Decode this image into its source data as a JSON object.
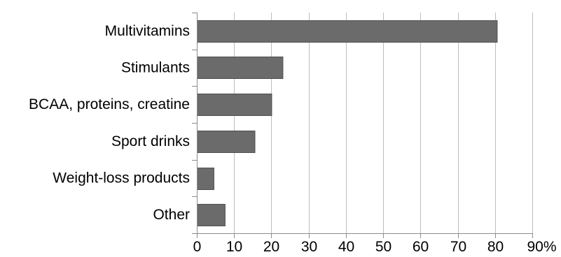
{
  "chart_data": {
    "type": "bar",
    "orientation": "horizontal",
    "categories": [
      "Multivitamins",
      "Stimulants",
      "BCAA, proteins, creatine",
      "Sport drinks",
      "Weight-loss products",
      "Other"
    ],
    "values": [
      80.5,
      23,
      20,
      15.5,
      4.5,
      7.5
    ],
    "xlim": [
      0,
      90
    ],
    "x_ticks": [
      0,
      10,
      20,
      30,
      40,
      50,
      60,
      70,
      80,
      90
    ],
    "x_tick_labels": [
      "0",
      "10",
      "20",
      "30",
      "40",
      "50",
      "60",
      "70",
      "80",
      "90%"
    ],
    "title": "",
    "xlabel": "",
    "ylabel": "",
    "grid": "vertical",
    "legend": "none",
    "bar_color": "#6b6b6b",
    "bar_edge_color": "#4f4f4f",
    "grid_color": "#bdbdbd",
    "axis_color": "#8c8c8c"
  }
}
